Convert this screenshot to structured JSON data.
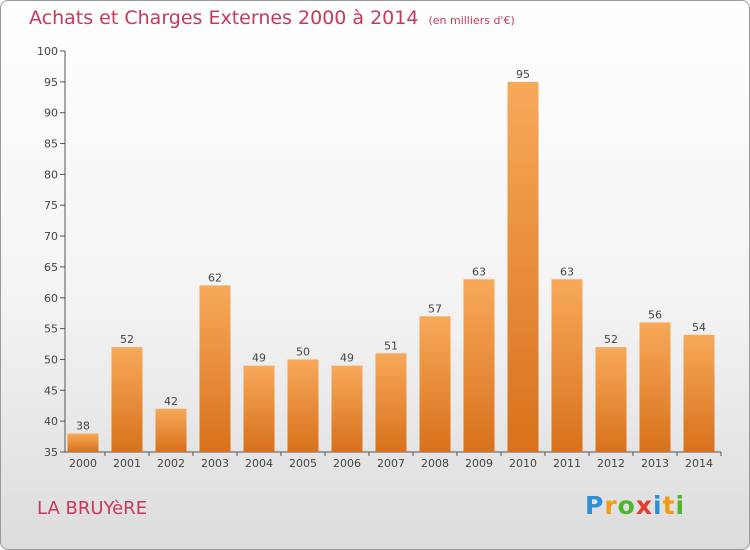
{
  "title": "Achats et Charges Externes 2000 à 2014",
  "unit_note": "(en milliers d'€)",
  "commune": "LA BRUYèRE",
  "logo": {
    "p": "P",
    "r": "r",
    "o": "o",
    "x": "x",
    "i1": "i",
    "t": "t",
    "i2": "i"
  },
  "colors": {
    "bar": "#f39a3e",
    "title": "#c8385a"
  },
  "chart_data": {
    "type": "bar",
    "categories": [
      "2000",
      "2001",
      "2002",
      "2003",
      "2004",
      "2005",
      "2006",
      "2007",
      "2008",
      "2009",
      "2010",
      "2011",
      "2012",
      "2013",
      "2014"
    ],
    "values": [
      38,
      52,
      42,
      62,
      49,
      50,
      49,
      51,
      57,
      63,
      95,
      63,
      52,
      56,
      54
    ],
    "ylim": [
      35,
      100
    ],
    "yticks": [
      35,
      40,
      45,
      50,
      55,
      60,
      65,
      70,
      75,
      80,
      85,
      90,
      95,
      100
    ],
    "grid": false
  }
}
